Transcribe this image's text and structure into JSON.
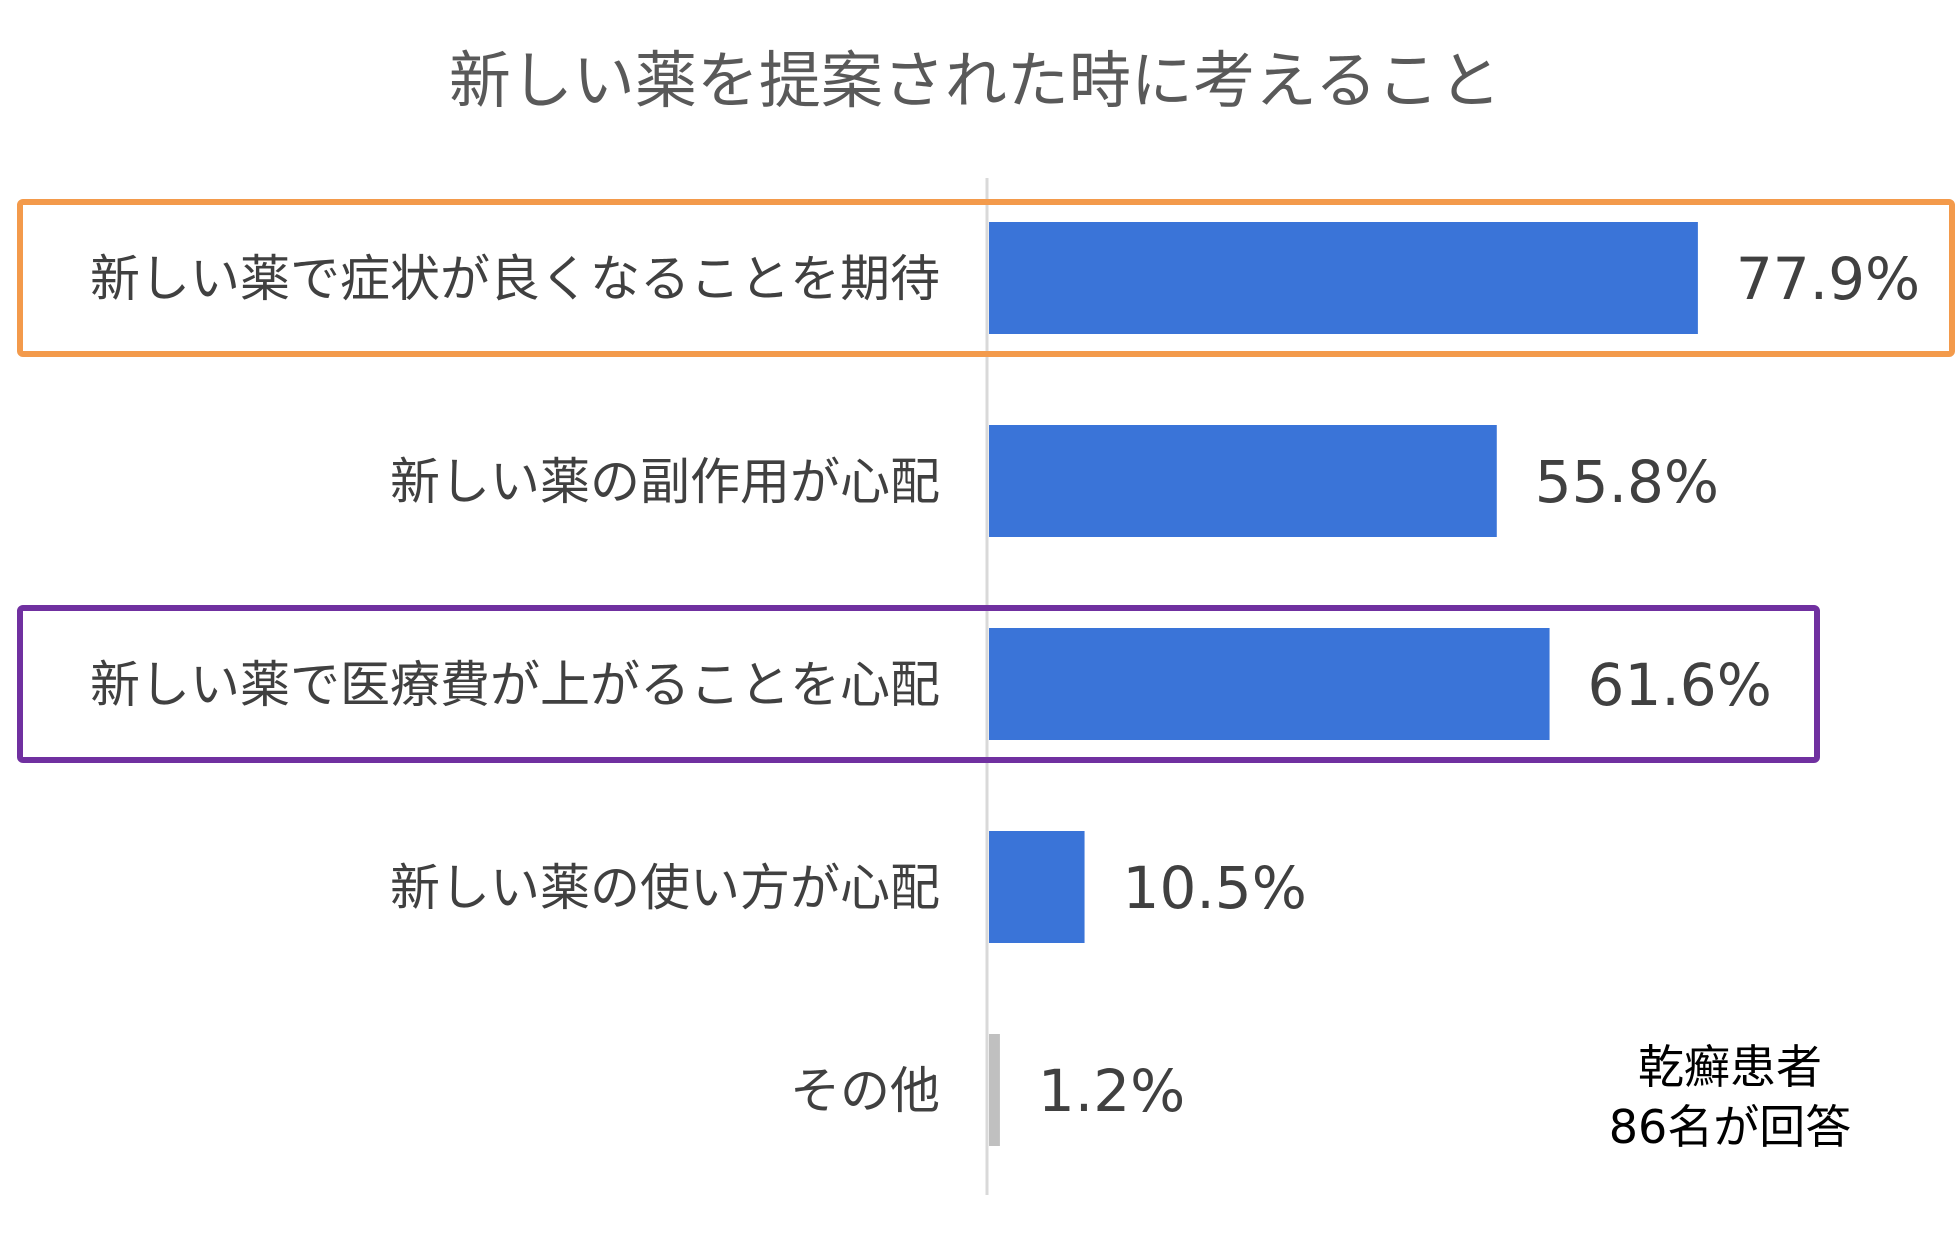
{
  "chart_data": {
    "type": "bar",
    "orientation": "horizontal",
    "title": "新しい薬を提案された時に考えること",
    "categories": [
      "新しい薬で症状が良くなることを期待",
      "新しい薬の副作用が心配",
      "新しい薬で医療費が上がることを心配",
      "新しい薬の使い方が心配",
      "その他"
    ],
    "values": [
      77.9,
      55.8,
      61.6,
      10.5,
      1.2
    ],
    "value_labels": [
      "77.9%",
      "55.8%",
      "61.6%",
      "10.5%",
      "1.2%"
    ],
    "unit": "%",
    "bar_colors": [
      "#3a74d8",
      "#3a74d8",
      "#3a74d8",
      "#3a74d8",
      "#c0c0c0"
    ],
    "highlights": [
      {
        "category_index": 0,
        "color": "#f39a4b"
      },
      {
        "category_index": 2,
        "color": "#7030a0"
      }
    ],
    "annotation": [
      "乾癬患者",
      "86名が回答"
    ],
    "grid": false,
    "legend": "none"
  }
}
